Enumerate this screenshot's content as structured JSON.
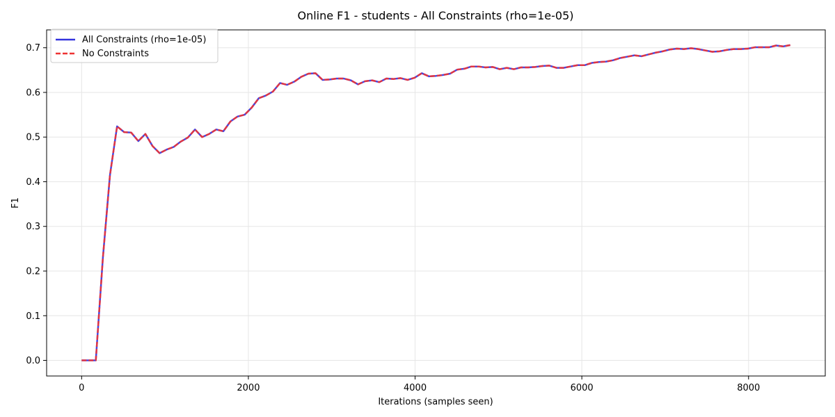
{
  "chart_data": {
    "type": "line",
    "title": "Online F1 - students - All Constraints (rho=1e-05)",
    "xlabel": "Iterations (samples seen)",
    "ylabel": "F1",
    "xlim": [
      -420,
      8920
    ],
    "ylim": [
      -0.035,
      0.74
    ],
    "xticks": [
      0,
      2000,
      4000,
      6000,
      8000
    ],
    "yticks": [
      0.0,
      0.1,
      0.2,
      0.3,
      0.4,
      0.5,
      0.6,
      0.7
    ],
    "xtick_labels": [
      "0",
      "2000",
      "4000",
      "6000",
      "8000"
    ],
    "ytick_labels": [
      "0.0",
      "0.1",
      "0.2",
      "0.3",
      "0.4",
      "0.5",
      "0.6",
      "0.7"
    ],
    "grid": true,
    "legend_position": "top-left",
    "x": [
      0,
      85,
      170,
      255,
      340,
      425,
      510,
      595,
      680,
      765,
      850,
      935,
      1020,
      1105,
      1190,
      1275,
      1360,
      1445,
      1530,
      1615,
      1700,
      1785,
      1870,
      1955,
      2040,
      2125,
      2210,
      2295,
      2380,
      2465,
      2550,
      2635,
      2720,
      2805,
      2890,
      2975,
      3060,
      3145,
      3230,
      3315,
      3400,
      3485,
      3570,
      3655,
      3740,
      3825,
      3910,
      3995,
      4080,
      4165,
      4250,
      4335,
      4420,
      4505,
      4590,
      4675,
      4760,
      4845,
      4930,
      5015,
      5100,
      5185,
      5270,
      5355,
      5440,
      5525,
      5610,
      5695,
      5780,
      5865,
      5950,
      6035,
      6120,
      6205,
      6290,
      6375,
      6460,
      6545,
      6630,
      6715,
      6800,
      6885,
      6970,
      7055,
      7140,
      7225,
      7310,
      7395,
      7480,
      7565,
      7650,
      7735,
      7820,
      7905,
      7990,
      8075,
      8160,
      8245,
      8330,
      8415,
      8500
    ],
    "series": [
      {
        "name": "All Constraints (rho=1e-05)",
        "color": "#3333dd",
        "style": "solid",
        "values": [
          0.0,
          0.0,
          0.0,
          0.23,
          0.415,
          0.524,
          0.511,
          0.51,
          0.491,
          0.507,
          0.48,
          0.464,
          0.472,
          0.478,
          0.49,
          0.499,
          0.517,
          0.5,
          0.507,
          0.517,
          0.513,
          0.535,
          0.546,
          0.55,
          0.566,
          0.587,
          0.593,
          0.602,
          0.621,
          0.617,
          0.624,
          0.635,
          0.642,
          0.643,
          0.628,
          0.629,
          0.631,
          0.631,
          0.627,
          0.618,
          0.625,
          0.627,
          0.623,
          0.631,
          0.63,
          0.632,
          0.628,
          0.633,
          0.643,
          0.636,
          0.637,
          0.639,
          0.642,
          0.651,
          0.653,
          0.658,
          0.658,
          0.656,
          0.657,
          0.652,
          0.655,
          0.652,
          0.656,
          0.656,
          0.657,
          0.659,
          0.66,
          0.655,
          0.655,
          0.658,
          0.661,
          0.661,
          0.666,
          0.668,
          0.669,
          0.672,
          0.677,
          0.68,
          0.683,
          0.681,
          0.685,
          0.689,
          0.692,
          0.696,
          0.698,
          0.697,
          0.699,
          0.697,
          0.694,
          0.691,
          0.692,
          0.695,
          0.697,
          0.697,
          0.698,
          0.701,
          0.701,
          0.701,
          0.705,
          0.703,
          0.706
        ]
      },
      {
        "name": "No Constraints",
        "color": "#ee3333",
        "style": "dashed",
        "values": [
          0.0,
          0.0,
          0.0,
          0.23,
          0.415,
          0.524,
          0.511,
          0.51,
          0.491,
          0.507,
          0.48,
          0.464,
          0.472,
          0.478,
          0.49,
          0.499,
          0.517,
          0.5,
          0.507,
          0.517,
          0.513,
          0.535,
          0.546,
          0.55,
          0.566,
          0.587,
          0.593,
          0.602,
          0.621,
          0.617,
          0.624,
          0.635,
          0.642,
          0.643,
          0.628,
          0.629,
          0.631,
          0.631,
          0.627,
          0.618,
          0.625,
          0.627,
          0.623,
          0.631,
          0.63,
          0.632,
          0.628,
          0.633,
          0.643,
          0.636,
          0.637,
          0.639,
          0.642,
          0.651,
          0.653,
          0.658,
          0.658,
          0.656,
          0.657,
          0.652,
          0.655,
          0.652,
          0.656,
          0.656,
          0.657,
          0.659,
          0.66,
          0.655,
          0.655,
          0.658,
          0.661,
          0.661,
          0.666,
          0.668,
          0.669,
          0.672,
          0.677,
          0.68,
          0.683,
          0.681,
          0.685,
          0.689,
          0.692,
          0.696,
          0.698,
          0.697,
          0.699,
          0.697,
          0.694,
          0.691,
          0.692,
          0.695,
          0.697,
          0.697,
          0.698,
          0.701,
          0.701,
          0.701,
          0.705,
          0.703,
          0.706
        ]
      }
    ]
  }
}
